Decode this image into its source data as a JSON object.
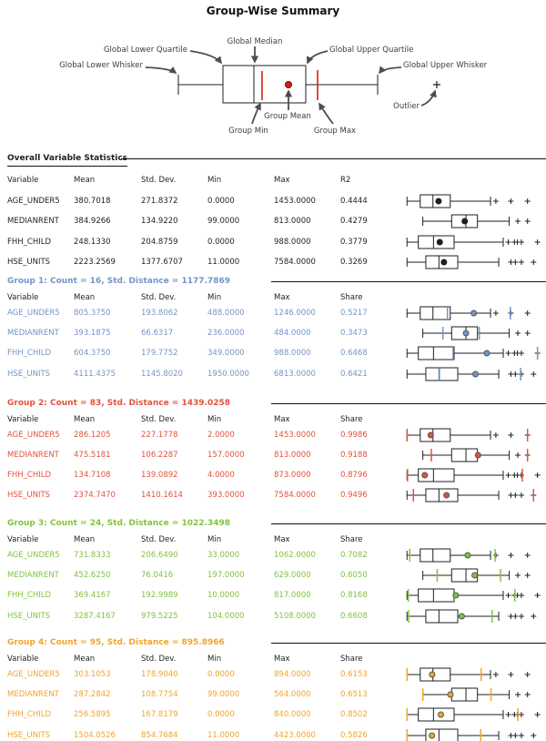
{
  "title": "Group-Wise Summary",
  "legend": {
    "labels": {
      "global_lower_whisker": "Global Lower Whisker",
      "global_lower_quartile": "Global Lower Quartile",
      "global_median": "Global Median",
      "global_upper_quartile": "Global Upper Quartile",
      "global_upper_whisker": "Global Upper Whisker",
      "group_min": "Group Min",
      "group_mean": "Group Mean",
      "group_max": "Group Max",
      "outlier": "Outlier"
    }
  },
  "colors": {
    "ink": "#1f1f1f",
    "legend_red": "#d42014",
    "leader": "#4d4d4d",
    "dot_ring": "#555555"
  },
  "chart_data": {
    "type": "boxplot",
    "title": "Group-Wise Summary",
    "legend_position": "top",
    "boxplot_geometry": {
      "AGE_UNDER5": {
        "wlo": 0.015,
        "q1": 0.112,
        "med": 0.205,
        "q3": 0.332,
        "whi": 0.627,
        "outliers": [
          0.666,
          0.776,
          0.898
        ],
        "axis": {
          "vmin": 0,
          "nmin": 0.015,
          "vmax": 1453,
          "nmax": 0.898
        }
      },
      "MEDIANRENT": {
        "wlo": 0.131,
        "q1": 0.342,
        "med": 0.447,
        "q3": 0.531,
        "whi": 0.764,
        "outliers": [
          0.827,
          0.898
        ],
        "axis": {
          "vmin": 99,
          "nmin": 0.131,
          "vmax": 813,
          "nmax": 0.898
        }
      },
      "FHH_CHILD": {
        "wlo": 0.015,
        "q1": 0.098,
        "med": 0.209,
        "q3": 0.36,
        "whi": 0.72,
        "outliers": [
          0.757,
          0.802,
          0.824,
          0.853,
          0.971
        ],
        "axis": {
          "vmin": 0,
          "nmin": 0.015,
          "vmax": 988,
          "nmax": 0.971
        }
      },
      "HSE_UNITS": {
        "wlo": 0.015,
        "q1": 0.153,
        "med": 0.249,
        "q3": 0.387,
        "whi": 0.687,
        "outliers": [
          0.776,
          0.809,
          0.853,
          0.942
        ],
        "axis": {
          "vmin": 11,
          "nmin": 0.015,
          "vmax": 7584,
          "nmax": 0.942
        }
      }
    },
    "sections": [
      {
        "kind": "overall",
        "title": "Overall Variable Statistics",
        "color": "#1f1f1f",
        "columns": [
          "Variable",
          "Mean",
          "Std. Dev.",
          "Min",
          "Max",
          "R2"
        ],
        "rows": [
          {
            "variable": "AGE_UNDER5",
            "mean": "380.7018",
            "std_dev": "271.8372",
            "min": "0.0000",
            "max": "1453.0000",
            "r2": "0.4444"
          },
          {
            "variable": "MEDIANRENT",
            "mean": "384.9266",
            "std_dev": "134.9220",
            "min": "99.0000",
            "max": "813.0000",
            "r2": "0.4279"
          },
          {
            "variable": "FHH_CHILD",
            "mean": "248.1330",
            "std_dev": "204.8759",
            "min": "0.0000",
            "max": "988.0000",
            "r2": "0.3779"
          },
          {
            "variable": "HSE_UNITS",
            "mean": "2223.2569",
            "std_dev": "1377.6707",
            "min": "11.0000",
            "max": "7584.0000",
            "r2": "0.3269"
          }
        ]
      },
      {
        "kind": "group",
        "title": "Group 1: Count = 16, Std. Distance = 1177.7869",
        "color": "#7295c7",
        "columns": [
          "Variable",
          "Mean",
          "Std. Dev.",
          "Min",
          "Max",
          "Share"
        ],
        "rows": [
          {
            "variable": "AGE_UNDER5",
            "mean": "805.3750",
            "std_dev": "193.8062",
            "min": "488.0000",
            "max": "1246.0000",
            "share": "0.5217"
          },
          {
            "variable": "MEDIANRENT",
            "mean": "393.1875",
            "std_dev": "66.6317",
            "min": "236.0000",
            "max": "484.0000",
            "share": "0.3473"
          },
          {
            "variable": "FHH_CHILD",
            "mean": "604.3750",
            "std_dev": "179.7752",
            "min": "349.0000",
            "max": "988.0000",
            "share": "0.6468"
          },
          {
            "variable": "HSE_UNITS",
            "mean": "4111.4375",
            "std_dev": "1145.8020",
            "min": "1950.0000",
            "max": "6813.0000",
            "share": "0.6421"
          }
        ]
      },
      {
        "kind": "group",
        "title": "Group 2: Count = 83, Std. Distance = 1439.0258",
        "color": "#e2523c",
        "columns": [
          "Variable",
          "Mean",
          "Std. Dev.",
          "Min",
          "Max",
          "Share"
        ],
        "rows": [
          {
            "variable": "AGE_UNDER5",
            "mean": "286.1205",
            "std_dev": "227.1778",
            "min": "2.0000",
            "max": "1453.0000",
            "share": "0.9986"
          },
          {
            "variable": "MEDIANRENT",
            "mean": "475.5181",
            "std_dev": "106.2287",
            "min": "157.0000",
            "max": "813.0000",
            "share": "0.9188"
          },
          {
            "variable": "FHH_CHILD",
            "mean": "134.7108",
            "std_dev": "139.0892",
            "min": "4.0000",
            "max": "873.0000",
            "share": "0.8796"
          },
          {
            "variable": "HSE_UNITS",
            "mean": "2374.7470",
            "std_dev": "1410.1614",
            "min": "393.0000",
            "max": "7584.0000",
            "share": "0.9496"
          }
        ]
      },
      {
        "kind": "group",
        "title": "Group 3: Count = 24, Std. Distance = 1022.3498",
        "color": "#82c341",
        "columns": [
          "Variable",
          "Mean",
          "Std. Dev.",
          "Min",
          "Max",
          "Share"
        ],
        "rows": [
          {
            "variable": "AGE_UNDER5",
            "mean": "731.8333",
            "std_dev": "206.6490",
            "min": "33.0000",
            "max": "1062.0000",
            "share": "0.7082"
          },
          {
            "variable": "MEDIANRENT",
            "mean": "452.6250",
            "std_dev": "76.0416",
            "min": "197.0000",
            "max": "629.0000",
            "share": "0.6050"
          },
          {
            "variable": "FHH_CHILD",
            "mean": "369.4167",
            "std_dev": "192.9989",
            "min": "10.0000",
            "max": "817.0000",
            "share": "0.8168"
          },
          {
            "variable": "HSE_UNITS",
            "mean": "3287.4167",
            "std_dev": "979.5225",
            "min": "104.0000",
            "max": "5108.0000",
            "share": "0.6608"
          }
        ]
      },
      {
        "kind": "group",
        "title": "Group 4: Count = 95, Std. Distance = 895.8966",
        "color": "#f3a42b",
        "columns": [
          "Variable",
          "Mean",
          "Std. Dev.",
          "Min",
          "Max",
          "Share"
        ],
        "rows": [
          {
            "variable": "AGE_UNDER5",
            "mean": "303.1053",
            "std_dev": "178.9040",
            "min": "0.0000",
            "max": "894.0000",
            "share": "0.6153"
          },
          {
            "variable": "MEDIANRENT",
            "mean": "287.2842",
            "std_dev": "108.7754",
            "min": "99.0000",
            "max": "564.0000",
            "share": "0.6513"
          },
          {
            "variable": "FHH_CHILD",
            "mean": "256.5895",
            "std_dev": "167.8179",
            "min": "0.0000",
            "max": "840.0000",
            "share": "0.8502"
          },
          {
            "variable": "HSE_UNITS",
            "mean": "1504.0526",
            "std_dev": "854.7684",
            "min": "11.0000",
            "max": "4423.0000",
            "share": "0.5826"
          }
        ]
      }
    ]
  }
}
